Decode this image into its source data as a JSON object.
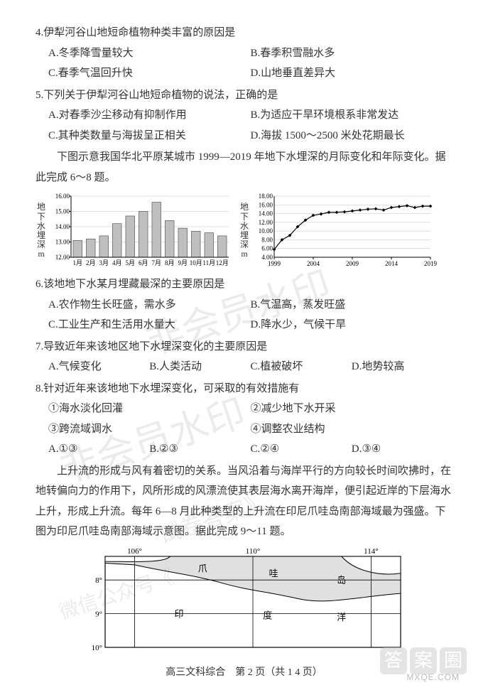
{
  "q4": {
    "stem": "4.伊犁河谷山地短命植物种类丰富的原因是",
    "opts": [
      "A.冬季降雪量较大",
      "B.春季积雪融水多",
      "C.春季气温回升快",
      "D.山地垂直差异大"
    ]
  },
  "q5": {
    "stem": "5.下列关于伊犁河谷山地短命植物的说法，正确的是",
    "opts": [
      "A.对春季沙尘移动有抑制作用",
      "B.为适应干旱环境根系非常发达",
      "C.其种类数量与海拔呈正相关",
      "D.海拔 1500～2500 米处花期最长"
    ]
  },
  "passage1": "下图示意我国华北平原某城市 1999—2019 年地下水埋深的月际变化和年际变化。据此完成 6～8 题。",
  "chart_monthly": {
    "type": "bar",
    "ylabel_chars": [
      "地",
      "下",
      "水",
      "埋",
      "深",
      "m"
    ],
    "ylim": [
      12.0,
      16.0
    ],
    "yticks": [
      "12.00",
      "13.00",
      "14.00",
      "15.00",
      "16.00"
    ],
    "categories": [
      "1月",
      "2月",
      "3月",
      "4月",
      "5月",
      "6月",
      "7月",
      "8月",
      "9月",
      "10月",
      "11月",
      "12月"
    ],
    "values": [
      13.1,
      13.2,
      13.4,
      14.2,
      14.7,
      15.0,
      15.6,
      14.4,
      13.9,
      13.7,
      13.6,
      13.4
    ],
    "bar_color": "#bfbfbf",
    "bar_border": "#424242",
    "axis_color": "#000000",
    "grid_color": "#bfbfbf",
    "label_fontsize": 9
  },
  "chart_yearly": {
    "type": "line",
    "ylabel_chars": [
      "地",
      "下",
      "水",
      "埋",
      "深",
      "m"
    ],
    "ylim": [
      4.0,
      18.0
    ],
    "yticks": [
      "4.00",
      "6.00",
      "8.00",
      "10.00",
      "12.00",
      "14.00",
      "16.00",
      "18.00"
    ],
    "xlim": [
      1999,
      2019
    ],
    "xticks": [
      "1999",
      "2004",
      "2009",
      "2014",
      "2019"
    ],
    "points": [
      [
        1999,
        5.8
      ],
      [
        2000,
        8.0
      ],
      [
        2001,
        9.0
      ],
      [
        2002,
        11.0
      ],
      [
        2003,
        12.5
      ],
      [
        2004,
        13.6
      ],
      [
        2005,
        13.9
      ],
      [
        2006,
        14.3
      ],
      [
        2007,
        14.3
      ],
      [
        2008,
        14.4
      ],
      [
        2009,
        14.6
      ],
      [
        2010,
        14.8
      ],
      [
        2011,
        15.0
      ],
      [
        2012,
        15.1
      ],
      [
        2013,
        14.8
      ],
      [
        2014,
        15.4
      ],
      [
        2015,
        15.6
      ],
      [
        2016,
        15.8
      ],
      [
        2017,
        15.4
      ],
      [
        2018,
        15.7
      ],
      [
        2019,
        15.7
      ]
    ],
    "line_color": "#000000",
    "marker": "diamond",
    "marker_fill": "#000000",
    "axis_color": "#000000",
    "grid_color": "#bfbfbf",
    "label_fontsize": 9
  },
  "q6": {
    "stem": "6.该地地下水某月埋藏最深的主要原因是",
    "opts": [
      "A.农作物生长旺盛，需水多",
      "B.气温高，蒸发旺盛",
      "C.工业生产和生活用水量大",
      "D.降水少，气候干旱"
    ]
  },
  "q7": {
    "stem": "7.导致近年来该地区地下水埋深变化的主要原因是",
    "opts": [
      "A.气候变化",
      "B.人类活动",
      "C.植被破坏",
      "D.地势较高"
    ]
  },
  "q8": {
    "stem": "8.针对近年来该地地下水埋深变化，可采取的有效措施有",
    "items": [
      "①海水淡化回灌",
      "②减少地下水开采",
      "③跨流域调水",
      "④调整农业结构"
    ],
    "opts": [
      "A.①③",
      "B.②③",
      "C.②④",
      "D.③④"
    ]
  },
  "passage2": "上升流的形成与风有着密切的关系。当风沿着与海岸平行的方向较长时间吹拂时，在地转偏向力的作用下，风所形成的风漂流使其表层海水离开海岸，便引起近岸的下层海水上升，形成上升流。每年 6—8 月此种类型的上升流在印尼爪哇岛南部海域最为强盛。下图为印尼爪哇岛南部海域示意图。据此完成 9～11 题。",
  "map": {
    "type": "map",
    "lon_ticks": [
      "106°",
      "110°",
      "114°"
    ],
    "lat_ticks": [
      "8°",
      "9°",
      "10°"
    ],
    "labels": {
      "island": [
        "爪",
        "哇",
        "岛"
      ],
      "ocean": [
        "印",
        "度",
        "洋"
      ]
    },
    "land_fill": "#e0e0e0",
    "sea_fill": "#ffffff",
    "lon_positions": [
      106,
      110,
      114
    ],
    "lat_positions": [
      8,
      9,
      10
    ],
    "border_color": "#000000",
    "grid_color": "#000000",
    "label_fontsize": 13
  },
  "footer": "高三文科综合　第 2 页（共 1 4 页）",
  "watermarks": {
    "wm1": "非会员水印",
    "wm2": "非会员水印",
    "wm3": "试卷答案》",
    "wm3b": "微信公众号《"
  },
  "logo": [
    "答",
    "案",
    "圈"
  ],
  "logo2": "MXQE.COM"
}
